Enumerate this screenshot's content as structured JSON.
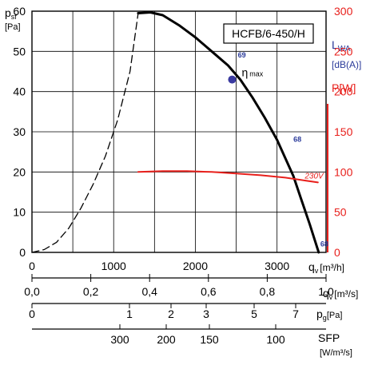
{
  "chart_data": {
    "type": "line",
    "title": "HCFB/6-450/H",
    "axes": {
      "left": {
        "label_main": "p",
        "label_sub": "sf",
        "unit": "[Pa]",
        "ylim": [
          0,
          60
        ],
        "ticks": [
          "0",
          "10",
          "20",
          "30",
          "40",
          "50",
          "60"
        ]
      },
      "right_power": {
        "label": "P[W]",
        "ylim": [
          0,
          300
        ],
        "ticks": [
          "0",
          "50",
          "100",
          "150",
          "200",
          "250",
          "300"
        ],
        "color": "#e8201c"
      },
      "right_sound": {
        "label_main": "L",
        "label_sub": "WA",
        "unit": "[dB(A)]",
        "color": "#2a3a9a"
      },
      "qv_m3h": {
        "label_main": "q",
        "label_sub": "v",
        "unit": "[m³/h]",
        "xlim": [
          0,
          3600
        ],
        "ticks": [
          "0",
          "1000",
          "2000",
          "3000"
        ]
      },
      "qv_m3s": {
        "label_main": "q",
        "label_sub": "v",
        "unit": "[m³/s]",
        "ticks": [
          "0,0",
          "0,2",
          "0,4",
          "0,6",
          "0,8",
          "1,0"
        ]
      },
      "pg": {
        "label_main": "p",
        "label_sub": "g",
        "unit": "[Pa]",
        "ticks": [
          "0",
          "1",
          "2",
          "3",
          "5",
          "7"
        ]
      },
      "sfp": {
        "label": "SFP",
        "unit": "[W/m³/s]",
        "ticks": [
          "300",
          "200",
          "150",
          "100"
        ]
      }
    },
    "grid": true,
    "series": [
      {
        "kind": "pressure",
        "color": "#000000",
        "x": [
          1300,
          1450,
          1600,
          1800,
          2000,
          2200,
          2400,
          2550,
          2700,
          2850,
          3000,
          3100,
          3200,
          3300,
          3400,
          3510
        ],
        "y": [
          59.5,
          59.7,
          59.0,
          56.5,
          53.5,
          50.0,
          46.5,
          43.0,
          38.5,
          33.5,
          28.0,
          23.5,
          19.0,
          13.0,
          7.0,
          0.0
        ]
      },
      {
        "kind": "pressure-dashed",
        "color": "#000000",
        "x": [
          0,
          150,
          300,
          450,
          600,
          750,
          900,
          1050,
          1200,
          1300
        ],
        "y": [
          0,
          0.7,
          2.5,
          6.0,
          11.0,
          17.0,
          24.0,
          33.0,
          45.0,
          59.5
        ]
      },
      {
        "kind": "power",
        "label": "230V",
        "color": "#e8201c",
        "x": [
          1300,
          1600,
          1900,
          2200,
          2500,
          2800,
          3100,
          3300,
          3500
        ],
        "y": [
          100,
          101,
          101,
          100,
          98,
          96,
          93,
          90,
          87
        ]
      }
    ],
    "sound_labels": [
      {
        "text": "69",
        "x": 2520,
        "y": 48.5
      },
      {
        "text": "68",
        "x": 3200,
        "y": 27.5
      },
      {
        "text": "68",
        "x": 3530,
        "y": 1.5
      }
    ],
    "eta": {
      "symbol": "η",
      "sub": "max",
      "x": 2450,
      "y": 43
    }
  }
}
